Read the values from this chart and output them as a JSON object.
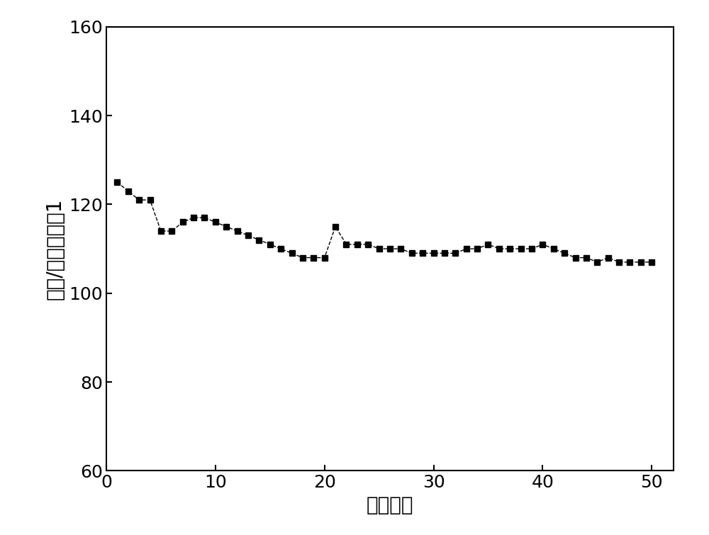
{
  "x": [
    1,
    2,
    3,
    4,
    5,
    6,
    7,
    8,
    9,
    10,
    11,
    12,
    13,
    14,
    15,
    16,
    17,
    18,
    19,
    20,
    21,
    22,
    23,
    24,
    25,
    26,
    27,
    28,
    29,
    30,
    31,
    32,
    33,
    34,
    35,
    36,
    37,
    38,
    39,
    40,
    41,
    42,
    43,
    44,
    45,
    46,
    47,
    48,
    49,
    50
  ],
  "y": [
    125,
    123,
    121,
    121,
    114,
    114,
    116,
    117,
    117,
    116,
    115,
    114,
    113,
    112,
    111,
    110,
    109,
    108,
    108,
    108,
    115,
    111,
    111,
    111,
    110,
    110,
    110,
    109,
    109,
    109,
    109,
    109,
    110,
    110,
    111,
    110,
    110,
    110,
    110,
    111,
    110,
    109,
    108,
    108,
    107,
    108,
    107,
    107,
    107,
    107
  ],
  "xlabel": "循环次数",
  "ylabel": "容量/毫安时克－1",
  "xlim": [
    0,
    52
  ],
  "ylim": [
    60,
    160
  ],
  "xticks": [
    0,
    10,
    20,
    30,
    40,
    50
  ],
  "yticks": [
    60,
    80,
    100,
    120,
    140,
    160
  ],
  "marker": "s",
  "color": "#000000",
  "linewidth": 1.0,
  "markersize": 6,
  "xlabel_fontsize": 20,
  "ylabel_fontsize": 20,
  "tick_fontsize": 18,
  "background_color": "#ffffff"
}
